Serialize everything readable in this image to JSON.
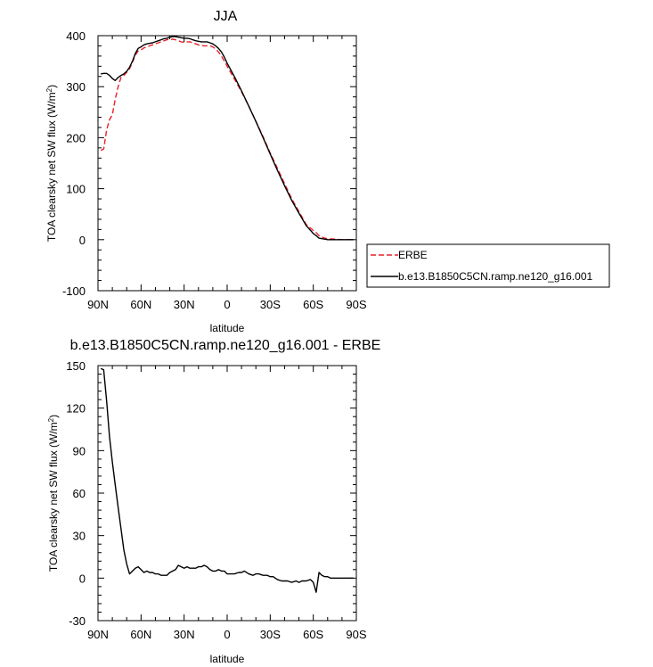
{
  "chart_data": [
    {
      "type": "line",
      "title": "JJA",
      "xlabel": "latitude",
      "ylabel": "TOA clearsky net SW flux (W/m",
      "ylabel_sup": "2",
      "ylabel_close": ")",
      "xlim": [
        90,
        -90
      ],
      "ylim": [
        -100,
        400
      ],
      "xticks": [
        {
          "value": 90,
          "label": "90N"
        },
        {
          "value": 60,
          "label": "60N"
        },
        {
          "value": 30,
          "label": "30N"
        },
        {
          "value": 0,
          "label": "0"
        },
        {
          "value": -30,
          "label": "30S"
        },
        {
          "value": -60,
          "label": "60S"
        },
        {
          "value": -90,
          "label": "90S"
        }
      ],
      "yticks": [
        {
          "value": -100,
          "label": "-100"
        },
        {
          "value": 0,
          "label": "0"
        },
        {
          "value": 100,
          "label": "100"
        },
        {
          "value": 200,
          "label": "200"
        },
        {
          "value": 300,
          "label": "300"
        },
        {
          "value": 400,
          "label": "400"
        }
      ],
      "legend": "right",
      "series": [
        {
          "name": "ERBE",
          "color": "#e8202a",
          "dash": "dashed",
          "x": [
            88,
            86,
            84,
            82,
            80,
            78,
            76,
            74,
            72,
            70,
            68,
            66,
            64,
            62,
            60,
            58,
            56,
            54,
            52,
            50,
            48,
            46,
            44,
            42,
            40,
            38,
            36,
            34,
            32,
            30,
            28,
            26,
            24,
            22,
            20,
            18,
            16,
            14,
            12,
            10,
            8,
            6,
            4,
            2,
            0,
            -5,
            -10,
            -15,
            -20,
            -25,
            -30,
            -35,
            -40,
            -45,
            -50,
            -55,
            -60,
            -62,
            -64,
            -66,
            -68,
            -70,
            -75,
            -80,
            -85,
            -88
          ],
          "y": [
            175,
            178,
            215,
            235,
            245,
            275,
            300,
            318,
            322,
            328,
            335,
            348,
            362,
            370,
            372,
            376,
            378,
            380,
            382,
            384,
            386,
            388,
            390,
            392,
            393,
            393,
            392,
            390,
            388,
            387,
            388,
            388,
            386,
            384,
            382,
            381,
            380,
            380,
            380,
            378,
            374,
            368,
            360,
            350,
            340,
            315,
            290,
            262,
            232,
            202,
            170,
            140,
            110,
            80,
            55,
            30,
            18,
            14,
            8,
            5,
            3,
            2,
            1,
            0,
            0,
            0
          ]
        },
        {
          "name": "b.e13.B1850C5CN.ramp.ne120_g16.001",
          "color": "#000000",
          "dash": "solid",
          "x": [
            88,
            86,
            84,
            82,
            80,
            78,
            76,
            74,
            72,
            70,
            68,
            66,
            64,
            62,
            60,
            58,
            56,
            54,
            52,
            50,
            48,
            46,
            44,
            42,
            40,
            38,
            36,
            34,
            32,
            30,
            28,
            26,
            24,
            22,
            20,
            18,
            16,
            14,
            12,
            10,
            8,
            6,
            4,
            2,
            0,
            -5,
            -10,
            -15,
            -20,
            -25,
            -30,
            -35,
            -40,
            -45,
            -50,
            -55,
            -60,
            -62,
            -64,
            -66,
            -68,
            -70,
            -75,
            -80,
            -85,
            -88
          ],
          "y": [
            325,
            326,
            326,
            322,
            316,
            312,
            318,
            322,
            325,
            330,
            338,
            350,
            365,
            375,
            378,
            382,
            384,
            385,
            386,
            388,
            390,
            392,
            394,
            395,
            397,
            398,
            398,
            397,
            396,
            395,
            395,
            394,
            392,
            390,
            389,
            388,
            388,
            388,
            386,
            384,
            380,
            375,
            368,
            358,
            346,
            320,
            292,
            262,
            232,
            200,
            168,
            136,
            106,
            77,
            52,
            28,
            12,
            8,
            3,
            2,
            1,
            0,
            0,
            0,
            0,
            0
          ]
        }
      ]
    },
    {
      "type": "line",
      "title": "b.e13.B1850C5CN.ramp.ne120_g16.001 - ERBE",
      "xlabel": "latitude",
      "ylabel": "TOA clearsky net SW flux (W/m",
      "ylabel_sup": "2",
      "ylabel_close": ")",
      "xlim": [
        90,
        -90
      ],
      "ylim": [
        -30,
        150
      ],
      "xticks": [
        {
          "value": 90,
          "label": "90N"
        },
        {
          "value": 60,
          "label": "60N"
        },
        {
          "value": 30,
          "label": "30N"
        },
        {
          "value": 0,
          "label": "0"
        },
        {
          "value": -30,
          "label": "30S"
        },
        {
          "value": -60,
          "label": "60S"
        },
        {
          "value": -90,
          "label": "90S"
        }
      ],
      "yticks": [
        {
          "value": -30,
          "label": "-30"
        },
        {
          "value": 0,
          "label": "0"
        },
        {
          "value": 30,
          "label": "30"
        },
        {
          "value": 60,
          "label": "60"
        },
        {
          "value": 90,
          "label": "90"
        },
        {
          "value": 120,
          "label": "120"
        },
        {
          "value": 150,
          "label": "150"
        }
      ],
      "series": [
        {
          "color": "#000000",
          "dash": "solid",
          "x": [
            88,
            86,
            84,
            82,
            80,
            78,
            76,
            74,
            72,
            70,
            68,
            66,
            64,
            62,
            60,
            58,
            56,
            54,
            52,
            50,
            48,
            46,
            44,
            42,
            40,
            38,
            36,
            34,
            32,
            30,
            28,
            26,
            24,
            22,
            20,
            18,
            16,
            14,
            12,
            10,
            8,
            6,
            4,
            2,
            0,
            -2,
            -5,
            -8,
            -10,
            -12,
            -15,
            -18,
            -20,
            -22,
            -25,
            -28,
            -30,
            -32,
            -35,
            -38,
            -40,
            -42,
            -45,
            -48,
            -50,
            -52,
            -55,
            -58,
            -60,
            -62,
            -64,
            -66,
            -68,
            -70,
            -72,
            -75,
            -78,
            -80,
            -84,
            -88
          ],
          "y": [
            148,
            147,
            125,
            100,
            82,
            66,
            50,
            35,
            20,
            10,
            3,
            5,
            7,
            8,
            6,
            4,
            5,
            4,
            4,
            3,
            3,
            2,
            2,
            2,
            4,
            5,
            6,
            9,
            8,
            7,
            8,
            7,
            7,
            7,
            8,
            8,
            9,
            8,
            6,
            5,
            5,
            6,
            5,
            5,
            3,
            3,
            3,
            4,
            4,
            5,
            3,
            2,
            3,
            3,
            2,
            2,
            1,
            1,
            -1,
            -2,
            -2,
            -2,
            -3,
            -2,
            -3,
            -2,
            -2,
            -1,
            -3,
            -10,
            4,
            2,
            1,
            1,
            0,
            0,
            0,
            0,
            0,
            0
          ]
        }
      ]
    }
  ]
}
